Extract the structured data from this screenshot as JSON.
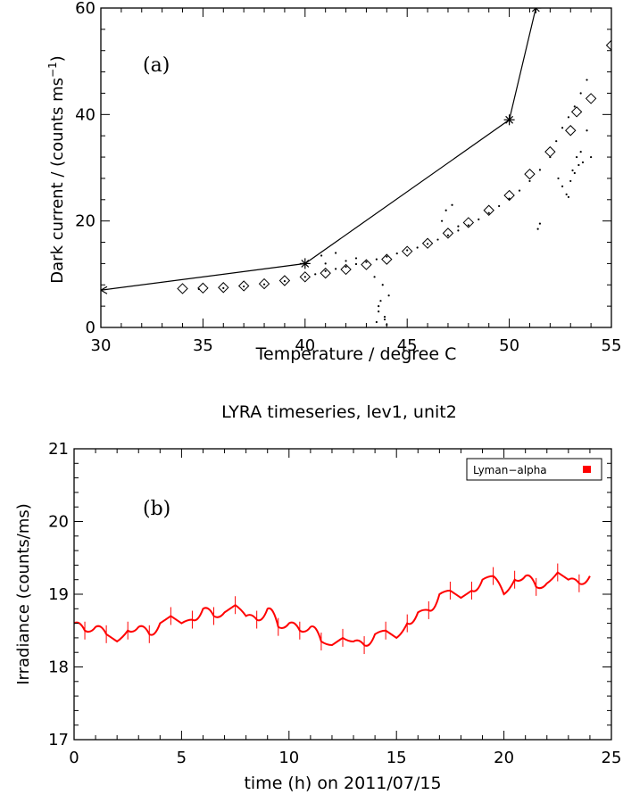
{
  "chart_data": [
    {
      "type": "line",
      "panel_label": "(a)",
      "title": "",
      "xlabel": "Temperature / degree C",
      "ylabel_main": "Dark current / (counts ms",
      "ylabel_sup": "−1",
      "ylabel_close": ")",
      "xlim": [
        30,
        55
      ],
      "ylim": [
        0,
        60
      ],
      "x_ticks": [
        30,
        35,
        40,
        45,
        50,
        55
      ],
      "y_ticks": [
        0,
        20,
        40,
        60
      ],
      "grid": false,
      "series": [
        {
          "marker": "star",
          "color": "#000000",
          "x": [
            30,
            40,
            50,
            51.3
          ],
          "y": [
            7,
            12,
            39,
            60
          ]
        },
        {
          "marker": "diamond",
          "color": "#000000",
          "x": [
            34,
            35,
            36,
            37,
            38,
            39,
            40,
            41,
            42,
            43,
            44,
            45,
            46,
            47,
            48,
            49,
            50,
            51,
            52,
            53,
            53.3,
            54,
            55
          ],
          "y": [
            7.3,
            7.4,
            7.5,
            7.8,
            8.2,
            8.8,
            9.5,
            10.2,
            10.9,
            11.8,
            12.8,
            14.3,
            15.8,
            17.7,
            19.7,
            22.0,
            24.8,
            28.8,
            33.0,
            37.0,
            40.5,
            43.0,
            53.0
          ]
        },
        {
          "marker": "dots",
          "color": "#000000",
          "x": [
            34.8,
            36,
            37,
            38,
            39,
            40,
            40.5,
            41,
            41.5,
            42,
            42.5,
            43,
            43.5,
            44,
            44.5,
            45,
            45.5,
            46,
            46.5,
            47,
            47.5,
            48,
            48.5,
            49,
            49.5,
            50,
            50.5,
            51,
            51.5,
            52,
            52.3,
            52.6,
            52.9,
            53.2,
            53.5,
            53.8
          ],
          "y": [
            7.2,
            7.4,
            7.7,
            8.1,
            8.7,
            9.5,
            10.0,
            10.6,
            11.0,
            11.4,
            11.9,
            12.3,
            12.8,
            13.3,
            13.9,
            14.5,
            15.0,
            15.7,
            16.5,
            17.3,
            18.2,
            19.2,
            20.3,
            21.5,
            22.8,
            24.2,
            25.7,
            27.5,
            29.6,
            32.0,
            35.0,
            37.5,
            39.5,
            41.5,
            44.0,
            46.5
          ]
        },
        {
          "marker": "dots",
          "color": "#000000",
          "x": [
            43.5,
            43.6,
            43.7,
            43.8,
            43.9,
            44.0,
            44.1,
            43.4,
            43.6,
            43.9,
            42.0,
            42.5,
            41.5,
            41.0,
            40.8,
            46.7,
            46.9,
            47.2,
            47.5,
            51.4,
            51.5,
            52.4,
            52.6,
            52.8,
            53.0,
            53.2,
            53.4,
            53.6,
            53.3,
            52.9,
            53.1,
            53.5,
            54.0,
            53.8
          ],
          "y": [
            1.0,
            3.0,
            5.0,
            8.0,
            2.0,
            0.5,
            6.0,
            9.5,
            4.0,
            1.5,
            12.5,
            13.0,
            14.0,
            12.0,
            13.5,
            20.0,
            22.0,
            23.0,
            19.0,
            18.5,
            19.5,
            28.0,
            26.5,
            25.0,
            27.5,
            29.0,
            30.5,
            31.0,
            32.0,
            24.5,
            29.5,
            33.0,
            32.0,
            37.0
          ]
        }
      ]
    },
    {
      "type": "line",
      "panel_label": "(b)",
      "title": "LYRA timeseries, lev1, unit2",
      "xlabel": "time (h) on 2011/07/15",
      "ylabel": "Irradiance (counts/ms)",
      "xlim": [
        0,
        25
      ],
      "ylim": [
        17,
        21
      ],
      "x_ticks": [
        0,
        5,
        10,
        15,
        20,
        25
      ],
      "y_ticks": [
        17,
        18,
        19,
        20,
        21
      ],
      "grid": false,
      "legend_position": "top-right",
      "series": [
        {
          "name": "Lyman−alpha",
          "color": "#ff0000",
          "x": [
            0,
            0.5,
            1,
            1.5,
            2,
            2.5,
            3,
            3.5,
            4,
            4.5,
            5,
            5.5,
            6,
            6.5,
            7,
            7.5,
            8,
            8.5,
            9,
            9.5,
            10,
            10.5,
            11,
            11.5,
            12,
            12.5,
            13,
            13.5,
            14,
            14.5,
            15,
            15.5,
            16,
            16.5,
            17,
            17.5,
            18,
            18.5,
            19,
            19.5,
            20,
            20.5,
            21,
            21.5,
            22,
            22.5,
            23,
            23.5,
            24
          ],
          "y": [
            18.6,
            18.5,
            18.55,
            18.45,
            18.35,
            18.5,
            18.55,
            18.45,
            18.6,
            18.7,
            18.6,
            18.65,
            18.8,
            18.7,
            18.75,
            18.85,
            18.7,
            18.65,
            18.8,
            18.55,
            18.6,
            18.5,
            18.55,
            18.35,
            18.3,
            18.4,
            18.35,
            18.3,
            18.45,
            18.5,
            18.4,
            18.6,
            18.75,
            18.78,
            19.0,
            19.05,
            18.95,
            19.05,
            19.2,
            19.25,
            19.0,
            19.2,
            19.25,
            19.1,
            19.15,
            19.3,
            19.2,
            19.15,
            19.25
          ]
        }
      ]
    }
  ]
}
